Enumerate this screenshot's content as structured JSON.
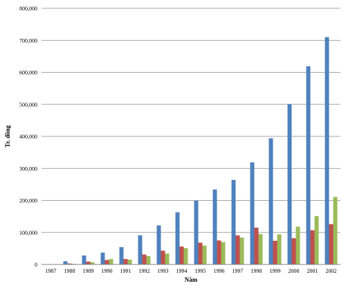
{
  "chart_data": {
    "type": "bar",
    "title": "",
    "xlabel": "Năm",
    "ylabel": "Tr. đồng",
    "ylim": [
      0,
      800000
    ],
    "yticks": [
      "0",
      "100,000",
      "200,000",
      "300,000",
      "400,000",
      "500,000",
      "600,000",
      "700,000",
      "800,000"
    ],
    "ytick_values": [
      0,
      100000,
      200000,
      300000,
      400000,
      500000,
      600000,
      700000,
      800000
    ],
    "grid": true,
    "legend": "none",
    "categories": [
      "1987",
      "1988",
      "1989",
      "1990",
      "1991",
      "1992",
      "1993",
      "1994",
      "1995",
      "1996",
      "1997",
      "1998",
      "1999",
      "2000",
      "2001",
      "2002"
    ],
    "series": [
      {
        "color": "#4F81BD",
        "values": [
          0,
          10000,
          28000,
          37000,
          54000,
          91000,
          122000,
          163000,
          199000,
          234000,
          264000,
          319000,
          394000,
          501000,
          619000,
          710000
        ]
      },
      {
        "color": "#C0504D",
        "values": [
          0,
          3000,
          9000,
          14000,
          17000,
          31000,
          43000,
          56000,
          68000,
          75000,
          91000,
          115000,
          74000,
          82000,
          107000,
          126000
        ]
      },
      {
        "color": "#9BBB59",
        "values": [
          0,
          2000,
          7000,
          17000,
          15000,
          26000,
          34000,
          51000,
          59000,
          70000,
          84000,
          95000,
          94000,
          118000,
          151000,
          211000
        ]
      }
    ]
  }
}
